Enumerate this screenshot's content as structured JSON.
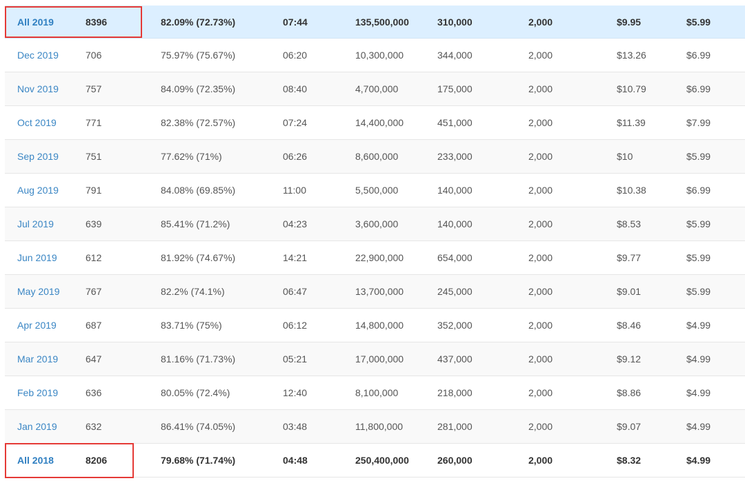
{
  "rows": [
    {
      "month": "All 2019",
      "count": "8396",
      "pct": "82.09% (72.73%)",
      "time": "07:44",
      "total": "135,500,000",
      "avg": "310,000",
      "min": "2,000",
      "price_high": "$9.95",
      "price_low": "$5.99"
    },
    {
      "month": "Dec 2019",
      "count": "706",
      "pct": "75.97% (75.67%)",
      "time": "06:20",
      "total": "10,300,000",
      "avg": "344,000",
      "min": "2,000",
      "price_high": "$13.26",
      "price_low": "$6.99"
    },
    {
      "month": "Nov 2019",
      "count": "757",
      "pct": "84.09% (72.35%)",
      "time": "08:40",
      "total": "4,700,000",
      "avg": "175,000",
      "min": "2,000",
      "price_high": "$10.79",
      "price_low": "$6.99"
    },
    {
      "month": "Oct 2019",
      "count": "771",
      "pct": "82.38% (72.57%)",
      "time": "07:24",
      "total": "14,400,000",
      "avg": "451,000",
      "min": "2,000",
      "price_high": "$11.39",
      "price_low": "$7.99"
    },
    {
      "month": "Sep 2019",
      "count": "751",
      "pct": "77.62% (71%)",
      "time": "06:26",
      "total": "8,600,000",
      "avg": "233,000",
      "min": "2,000",
      "price_high": "$10",
      "price_low": "$5.99"
    },
    {
      "month": "Aug 2019",
      "count": "791",
      "pct": "84.08% (69.85%)",
      "time": "11:00",
      "total": "5,500,000",
      "avg": "140,000",
      "min": "2,000",
      "price_high": "$10.38",
      "price_low": "$6.99"
    },
    {
      "month": "Jul 2019",
      "count": "639",
      "pct": "85.41% (71.2%)",
      "time": "04:23",
      "total": "3,600,000",
      "avg": "140,000",
      "min": "2,000",
      "price_high": "$8.53",
      "price_low": "$5.99"
    },
    {
      "month": "Jun 2019",
      "count": "612",
      "pct": "81.92% (74.67%)",
      "time": "14:21",
      "total": "22,900,000",
      "avg": "654,000",
      "min": "2,000",
      "price_high": "$9.77",
      "price_low": "$5.99"
    },
    {
      "month": "May 2019",
      "count": "767",
      "pct": "82.2% (74.1%)",
      "time": "06:47",
      "total": "13,700,000",
      "avg": "245,000",
      "min": "2,000",
      "price_high": "$9.01",
      "price_low": "$5.99"
    },
    {
      "month": "Apr 2019",
      "count": "687",
      "pct": "83.71% (75%)",
      "time": "06:12",
      "total": "14,800,000",
      "avg": "352,000",
      "min": "2,000",
      "price_high": "$8.46",
      "price_low": "$4.99"
    },
    {
      "month": "Mar 2019",
      "count": "647",
      "pct": "81.16% (71.73%)",
      "time": "05:21",
      "total": "17,000,000",
      "avg": "437,000",
      "min": "2,000",
      "price_high": "$9.12",
      "price_low": "$4.99"
    },
    {
      "month": "Feb 2019",
      "count": "636",
      "pct": "80.05% (72.4%)",
      "time": "12:40",
      "total": "8,100,000",
      "avg": "218,000",
      "min": "2,000",
      "price_high": "$8.86",
      "price_low": "$4.99"
    },
    {
      "month": "Jan 2019",
      "count": "632",
      "pct": "86.41% (74.05%)",
      "time": "03:48",
      "total": "11,800,000",
      "avg": "281,000",
      "min": "2,000",
      "price_high": "$9.07",
      "price_low": "$4.99"
    },
    {
      "month": "All 2018",
      "count": "8206",
      "pct": "79.68% (71.74%)",
      "time": "04:48",
      "total": "250,400,000",
      "avg": "260,000",
      "min": "2,000",
      "price_high": "$8.32",
      "price_low": "$4.99"
    }
  ]
}
